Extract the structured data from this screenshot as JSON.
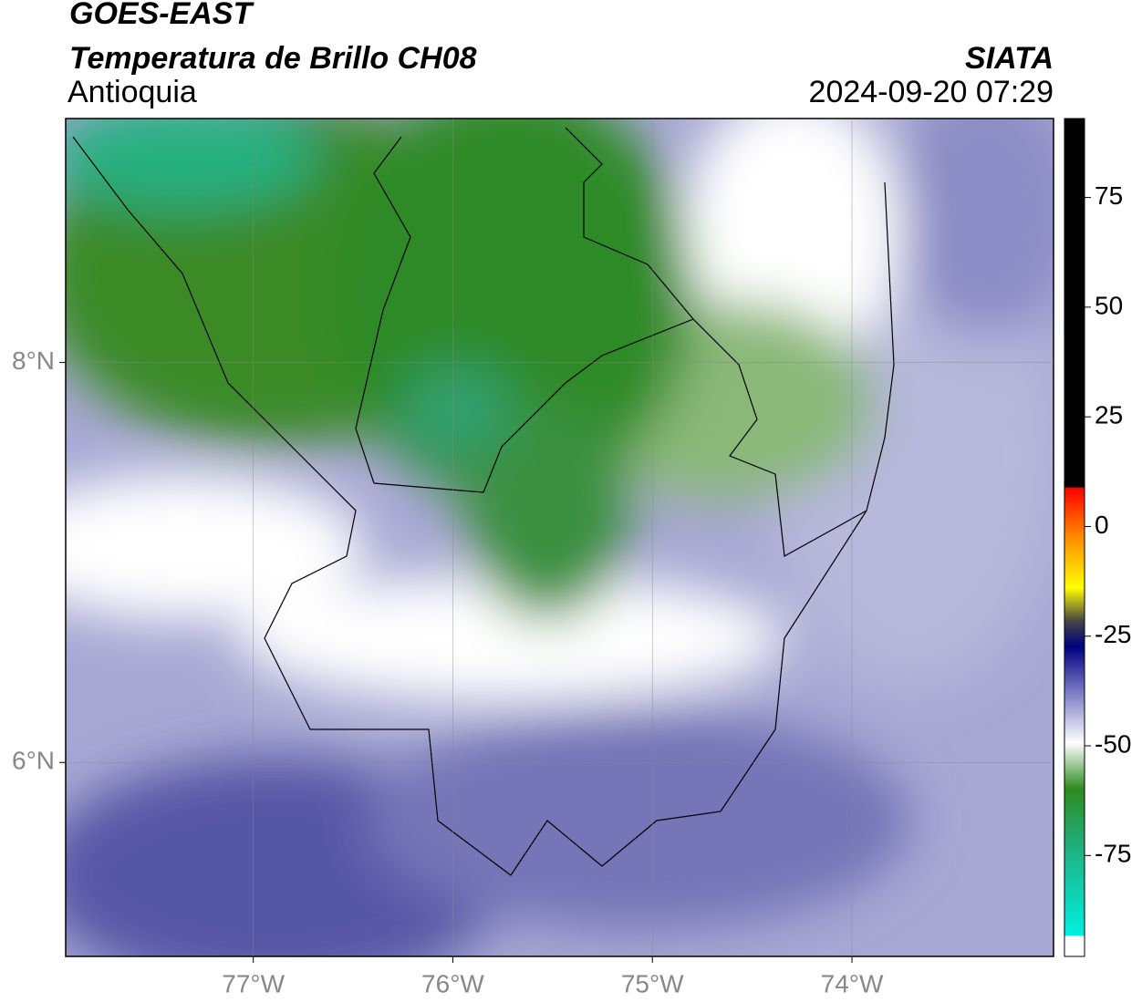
{
  "header": {
    "title": "GOES-EAST",
    "subtitle": "Temperatura de Brillo CH08",
    "region": "Antioquia",
    "source": "SIATA",
    "datetime": "2024-09-20 07:29"
  },
  "map": {
    "xlim": [
      -77.94,
      -72.99
    ],
    "ylim": [
      5.03,
      9.22
    ],
    "xticks": [
      {
        "value": -77,
        "label": "77°W"
      },
      {
        "value": -76,
        "label": "76°W"
      },
      {
        "value": -75,
        "label": "75°W"
      },
      {
        "value": -74,
        "label": "74°W"
      }
    ],
    "yticks": [
      {
        "value": 8,
        "label": "8°N"
      },
      {
        "value": 6,
        "label": "6°N"
      }
    ],
    "grid": true
  },
  "colorbar": {
    "lim": [
      -98,
      93
    ],
    "ticks": [
      75,
      50,
      25,
      0,
      -25,
      -50,
      -75
    ]
  }
}
